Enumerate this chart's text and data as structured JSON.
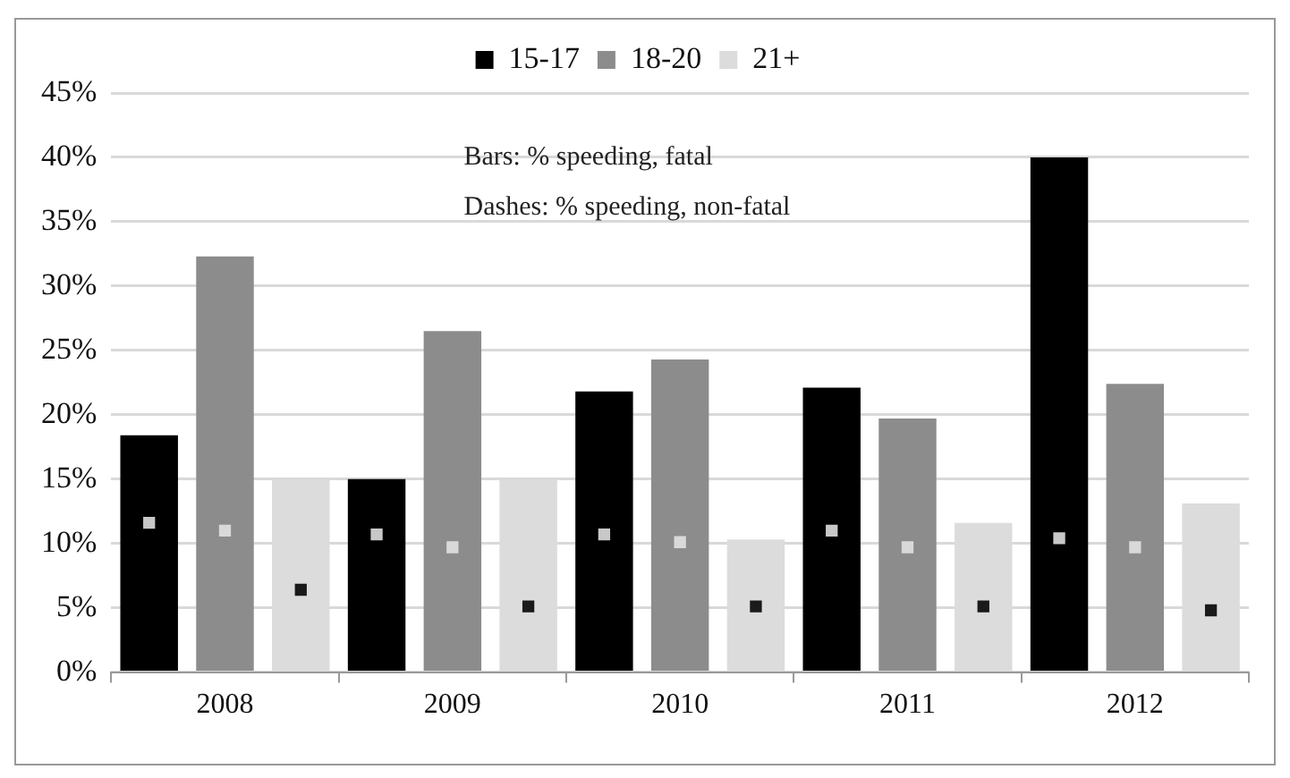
{
  "chart_data": {
    "type": "bar",
    "categories": [
      "2008",
      "2009",
      "2010",
      "2011",
      "2012"
    ],
    "series": [
      {
        "name": "15-17",
        "color": "#000000",
        "values": [
          18.4,
          15.0,
          21.8,
          22.1,
          40.0
        ]
      },
      {
        "name": "18-20",
        "color": "#8c8c8c",
        "values": [
          32.3,
          26.5,
          24.3,
          19.7,
          22.4
        ]
      },
      {
        "name": "21+",
        "color": "#dcdcdc",
        "values": [
          15.0,
          15.0,
          10.3,
          11.6,
          13.1
        ]
      },
      {
        "type": "scatter",
        "color": "#c8c8c8",
        "values": [
          11.6,
          10.7,
          10.7,
          11.0,
          10.4
        ]
      },
      {
        "type": "scatter",
        "color": "#d9d9d9",
        "values": [
          11.0,
          9.7,
          10.1,
          9.7,
          9.7
        ]
      },
      {
        "type": "scatter",
        "color": "#1a1a1a",
        "values": [
          6.4,
          5.1,
          5.1,
          5.1,
          4.8
        ]
      }
    ],
    "ylim": [
      0,
      45
    ],
    "yticks": [
      {
        "value": 0,
        "label": "0%"
      },
      {
        "value": 5,
        "label": "5%"
      },
      {
        "value": 10,
        "label": "10%"
      },
      {
        "value": 15,
        "label": "15%"
      },
      {
        "value": 20,
        "label": "20%"
      },
      {
        "value": 25,
        "label": "25%"
      },
      {
        "value": 30,
        "label": "30%"
      },
      {
        "value": 35,
        "label": "35%"
      },
      {
        "value": 40,
        "label": "40%"
      },
      {
        "value": 45,
        "label": "45%"
      }
    ],
    "grid": "y",
    "legend": "top",
    "marker": "square",
    "annotations": [
      "Bars: % speeding, fatal",
      "Dashes: % speeding, non-fatal"
    ]
  }
}
